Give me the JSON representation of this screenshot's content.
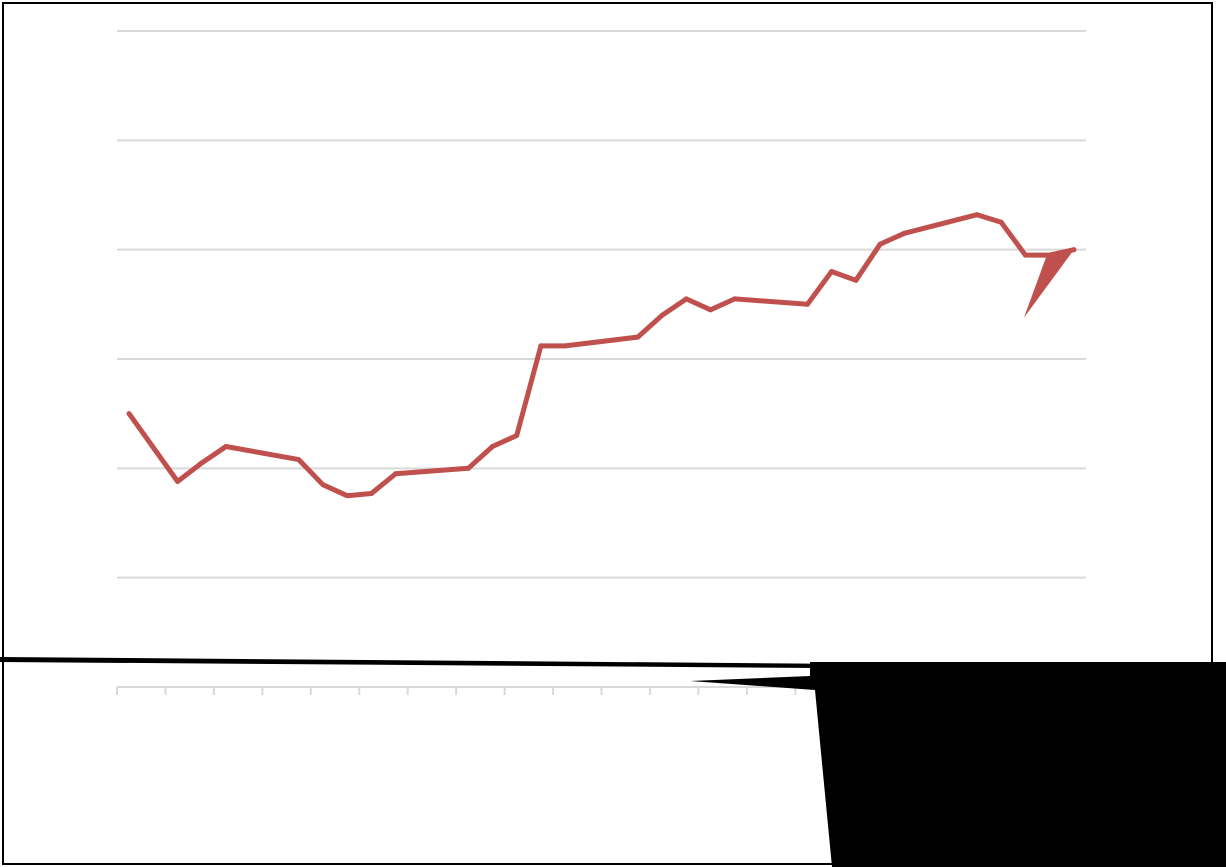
{
  "chart_data": {
    "type": "line",
    "title": "",
    "xlabel": "",
    "ylabel": "",
    "x_tick_count": 20,
    "ylim": [
      0,
      6
    ],
    "gridlines_y": [
      1,
      2,
      3,
      4,
      5,
      6
    ],
    "grid": true,
    "legend": "none",
    "series": [
      {
        "color": "#c0504d",
        "x": [
          0.5,
          2.5,
          3.5,
          4.5,
          7.5,
          8.5,
          9.5,
          10.5,
          11.5,
          14.5,
          15.5,
          16.5,
          17.5,
          18.5,
          21.5,
          22.5,
          23.5,
          24.5,
          25.5,
          28.5,
          29.5,
          30.5,
          31.5,
          32.5,
          35.5,
          36.5,
          37.5,
          38.5,
          39.5
        ],
        "values": [
          2.5,
          1.88,
          2.05,
          2.2,
          2.08,
          1.85,
          1.75,
          1.77,
          1.95,
          2.0,
          2.2,
          2.3,
          3.12,
          3.12,
          3.2,
          3.4,
          3.55,
          3.45,
          3.55,
          3.5,
          3.8,
          3.72,
          4.05,
          4.15,
          4.32,
          4.25,
          3.95,
          3.95,
          4.0
        ]
      }
    ]
  }
}
